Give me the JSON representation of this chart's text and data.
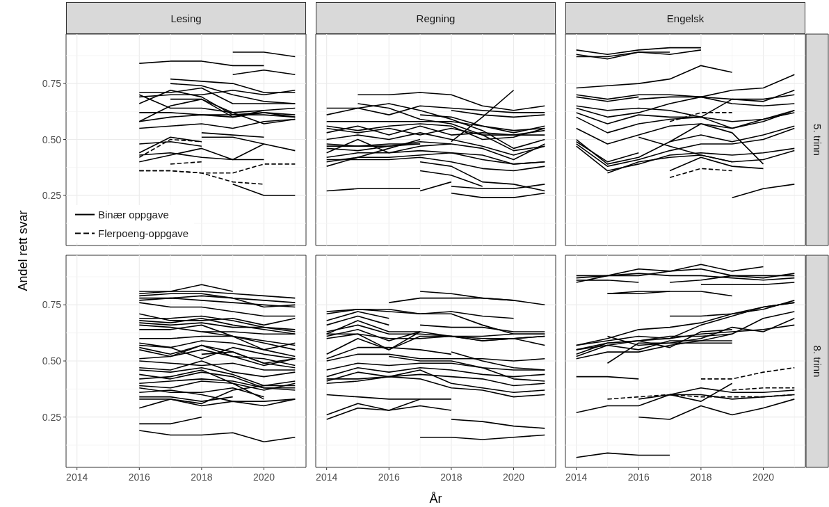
{
  "chart_data": [
    {
      "type": "line",
      "title": "Lesing",
      "ylabel": "Andel rett svar",
      "legend": "bottom left",
      "grid": true,
      "tick_labels": "y",
      "color": "#000000",
      "x": [
        2016,
        2017,
        2018,
        2019,
        2020,
        2021
      ],
      "xlim": [
        2013.65,
        2021.35
      ],
      "xticks": [
        2014,
        2016,
        2018,
        2020
      ],
      "ylim": [
        0.026,
        0.971
      ],
      "yticks": [
        0.25,
        {
          "value": 0.5,
          "label": "0.50"
        },
        0.75
      ],
      "series": [
        {
          "name": "Binær oppgave",
          "values": [
            0.84,
            0.85,
            0.85,
            0.83,
            0.83,
            null
          ]
        },
        {
          "values": [
            null,
            null,
            null,
            0.89,
            0.89,
            0.87
          ]
        },
        {
          "values": [
            null,
            null,
            null,
            0.79,
            0.81,
            0.79
          ]
        },
        {
          "values": [
            null,
            0.77,
            0.76,
            0.75,
            0.71,
            0.71
          ]
        },
        {
          "values": [
            null,
            0.75,
            0.74,
            0.7,
            0.67,
            0.66
          ]
        },
        {
          "values": [
            0.71,
            0.71,
            0.73,
            0.66,
            0.66,
            0.66
          ]
        },
        {
          "values": [
            0.66,
            0.72,
            0.69,
            0.61,
            0.62,
            0.6
          ]
        },
        {
          "values": [
            0.69,
            0.7,
            0.7,
            0.72,
            0.7,
            0.72
          ]
        },
        {
          "values": [
            0.7,
            0.64,
            0.64,
            0.62,
            0.57,
            0.59
          ]
        },
        {
          "values": [
            0.58,
            0.65,
            0.68,
            0.62,
            0.63,
            0.64
          ]
        },
        {
          "values": [
            0.62,
            0.62,
            0.61,
            0.61,
            0.61,
            0.6
          ]
        },
        {
          "values": [
            0.58,
            0.6,
            0.61,
            0.6,
            0.62,
            0.61
          ]
        },
        {
          "values": [
            0.55,
            0.56,
            0.57,
            0.55,
            0.58,
            0.59
          ]
        },
        {
          "values": [
            null,
            0.68,
            0.68,
            0.6,
            0.63,
            null
          ]
        },
        {
          "values": [
            null,
            null,
            0.53,
            0.52,
            0.51,
            null
          ]
        },
        {
          "values": [
            null,
            null,
            0.51,
            0.51,
            0.48,
            0.45
          ]
        },
        {
          "values": [
            0.48,
            0.49,
            0.47,
            null,
            null,
            null
          ]
        },
        {
          "values": [
            0.44,
            0.51,
            0.49,
            null,
            null,
            null
          ]
        },
        {
          "name": "Flerpoeng-oppgave",
          "line_style": "dashed",
          "values": [
            0.42,
            0.5,
            0.49,
            null,
            null,
            null
          ]
        },
        {
          "values": [
            0.43,
            0.44,
            0.42,
            0.41,
            0.41,
            null
          ]
        },
        {
          "values": [
            0.4,
            0.43,
            0.46,
            0.41,
            0.48,
            null
          ]
        },
        {
          "line_style": "dashed",
          "values": [
            null,
            0.39,
            0.4,
            null,
            null,
            null
          ]
        },
        {
          "line_style": "dashed",
          "values": [
            0.36,
            0.36,
            0.35,
            0.35,
            0.39,
            0.39
          ]
        },
        {
          "line_style": "dashed",
          "values": [
            0.36,
            0.36,
            0.35,
            0.31,
            0.3,
            null
          ]
        },
        {
          "values": [
            null,
            null,
            null,
            0.3,
            0.25,
            0.25
          ]
        }
      ]
    },
    {
      "type": "line",
      "title": "Regning",
      "grid": true,
      "tick_labels": false,
      "color": "#000000",
      "x": [
        2014,
        2015,
        2016,
        2017,
        2018,
        2019,
        2020,
        2021
      ],
      "xlim": [
        2013.65,
        2021.35
      ],
      "xticks": [
        2014,
        2016,
        2018,
        2020
      ],
      "ylim": [
        0.026,
        0.971
      ],
      "yticks": [
        0.25,
        0.5,
        0.75
      ],
      "series": [
        {
          "values": [
            null,
            0.7,
            0.7,
            0.71,
            0.7,
            0.65,
            0.63,
            0.65
          ]
        },
        {
          "values": [
            0.64,
            0.64,
            0.61,
            0.65,
            0.64,
            0.63,
            0.62,
            0.62
          ]
        },
        {
          "values": [
            0.61,
            0.64,
            0.66,
            0.63,
            0.59,
            0.54,
            0.46,
            0.5
          ]
        },
        {
          "values": [
            null,
            0.66,
            0.64,
            0.59,
            0.57,
            0.52,
            0.45,
            0.47
          ]
        },
        {
          "values": [
            null,
            null,
            null,
            0.61,
            0.6,
            0.56,
            0.53,
            0.56
          ]
        },
        {
          "values": [
            null,
            null,
            null,
            null,
            0.63,
            0.61,
            0.6,
            0.61
          ]
        },
        {
          "values": [
            null,
            null,
            null,
            null,
            0.49,
            0.6,
            0.72,
            null
          ]
        },
        {
          "values": [
            0.58,
            0.58,
            0.58,
            0.58,
            0.58,
            0.56,
            0.54,
            0.55
          ]
        },
        {
          "values": [
            0.56,
            0.54,
            0.56,
            0.57,
            0.56,
            0.5,
            0.51,
            0.55
          ]
        },
        {
          "values": [
            0.55,
            0.53,
            0.55,
            0.52,
            0.55,
            0.52,
            0.52,
            0.54
          ]
        },
        {
          "values": [
            0.53,
            0.56,
            0.52,
            0.56,
            0.52,
            0.53,
            0.52,
            0.52
          ]
        },
        {
          "values": [
            0.5,
            0.52,
            0.5,
            0.53,
            0.5,
            0.47,
            0.43,
            0.47
          ]
        },
        {
          "values": [
            0.48,
            0.47,
            0.47,
            0.49,
            0.48,
            0.46,
            0.41,
            0.48
          ]
        },
        {
          "values": [
            0.47,
            0.47,
            0.48,
            0.48,
            null,
            null,
            null,
            null
          ]
        },
        {
          "values": [
            0.46,
            0.45,
            0.47,
            0.48,
            null,
            null,
            null,
            null
          ]
        },
        {
          "values": [
            0.44,
            0.5,
            0.44,
            0.45,
            0.44,
            0.41,
            0.39,
            0.4
          ]
        },
        {
          "values": [
            0.42,
            0.44,
            0.44,
            0.47,
            0.48,
            null,
            null,
            null
          ]
        },
        {
          "values": [
            0.4,
            0.42,
            0.42,
            0.43,
            0.44,
            0.43,
            0.39,
            0.4
          ]
        },
        {
          "values": [
            0.38,
            0.42,
            0.46,
            0.5,
            null,
            null,
            null,
            null
          ]
        },
        {
          "values": [
            0.41,
            0.41,
            0.41,
            0.42,
            0.4,
            0.37,
            0.36,
            0.38
          ]
        },
        {
          "values": [
            null,
            null,
            null,
            0.36,
            0.34,
            0.29,
            null,
            null
          ]
        },
        {
          "values": [
            null,
            null,
            null,
            0.4,
            0.38,
            0.31,
            0.3,
            0.27
          ]
        },
        {
          "values": [
            0.27,
            0.28,
            0.28,
            0.28,
            null,
            null,
            null,
            null
          ]
        },
        {
          "values": [
            null,
            null,
            null,
            0.27,
            0.31,
            null,
            null,
            null
          ]
        },
        {
          "values": [
            null,
            null,
            null,
            null,
            0.29,
            0.28,
            0.28,
            0.3
          ]
        },
        {
          "values": [
            null,
            null,
            null,
            null,
            0.26,
            0.24,
            0.24,
            0.26
          ]
        }
      ]
    },
    {
      "type": "line",
      "title": "Engelsk",
      "annotations": [
        "5. trinn"
      ],
      "grid": true,
      "tick_labels": false,
      "color": "#000000",
      "x": [
        2014,
        2015,
        2016,
        2017,
        2018,
        2019,
        2020,
        2021
      ],
      "xlim": [
        2013.65,
        2021.35
      ],
      "xticks": [
        2014,
        2016,
        2018,
        2020
      ],
      "ylim": [
        0.026,
        0.971
      ],
      "yticks": [
        0.25,
        0.5,
        0.75
      ],
      "series": [
        {
          "values": [
            0.9,
            0.88,
            0.9,
            0.91,
            0.91,
            null,
            null,
            null
          ]
        },
        {
          "values": [
            0.88,
            0.86,
            0.89,
            0.88,
            0.9,
            null,
            null,
            null
          ]
        },
        {
          "values": [
            0.87,
            0.87,
            0.89,
            0.89,
            null,
            null,
            null,
            null
          ]
        },
        {
          "values": [
            0.73,
            0.74,
            0.75,
            0.77,
            0.83,
            0.8,
            null,
            null
          ]
        },
        {
          "values": [
            0.7,
            0.68,
            0.7,
            0.7,
            0.69,
            0.68,
            0.67,
            0.72
          ]
        },
        {
          "values": [
            0.69,
            0.67,
            0.69,
            null,
            null,
            null,
            null,
            null
          ]
        },
        {
          "values": [
            null,
            null,
            0.68,
            0.69,
            0.69,
            0.72,
            0.73,
            0.79
          ]
        },
        {
          "values": [
            0.65,
            0.63,
            0.64,
            0.63,
            0.6,
            0.68,
            0.68,
            0.7
          ]
        },
        {
          "values": [
            0.64,
            0.6,
            0.62,
            0.66,
            0.69,
            0.66,
            0.65,
            0.66
          ]
        },
        {
          "values": [
            0.62,
            0.57,
            0.61,
            0.6,
            0.6,
            0.58,
            0.59,
            0.63
          ]
        },
        {
          "values": [
            0.6,
            0.53,
            0.57,
            0.59,
            0.6,
            0.55,
            0.58,
            0.63
          ]
        },
        {
          "values": [
            0.55,
            0.48,
            0.52,
            0.56,
            0.57,
            0.55,
            0.59,
            0.62
          ]
        },
        {
          "values": [
            0.5,
            0.39,
            0.42,
            0.49,
            0.52,
            0.49,
            0.52,
            0.56
          ]
        },
        {
          "values": [
            0.49,
            0.4,
            0.44,
            null,
            null,
            null,
            null,
            null
          ]
        },
        {
          "values": [
            0.48,
            0.38,
            0.41,
            0.45,
            0.48,
            0.48,
            0.5,
            0.55
          ]
        },
        {
          "values": [
            0.47,
            0.36,
            0.39,
            0.43,
            0.44,
            0.43,
            0.44,
            0.46
          ]
        },
        {
          "values": [
            null,
            0.35,
            0.4,
            0.42,
            0.43,
            0.4,
            0.41,
            0.45
          ]
        },
        {
          "values": [
            null,
            null,
            0.51,
            0.47,
            0.43,
            0.4,
            null,
            null
          ]
        },
        {
          "values": [
            null,
            null,
            null,
            0.36,
            0.42,
            0.38,
            0.37,
            null
          ]
        },
        {
          "line_style": "dashed",
          "values": [
            null,
            null,
            null,
            0.33,
            0.37,
            0.36,
            null,
            null
          ]
        },
        {
          "line_style": "dashed",
          "values": [
            null,
            null,
            null,
            0.58,
            0.62,
            0.62,
            null,
            null
          ]
        },
        {
          "values": [
            null,
            null,
            null,
            null,
            null,
            0.24,
            0.28,
            0.3
          ]
        },
        {
          "values": [
            null,
            null,
            null,
            0.49,
            0.57,
            0.53,
            0.39,
            null
          ]
        }
      ]
    },
    {
      "type": "line",
      "grid": true,
      "color": "#000000",
      "x": [
        2016,
        2017,
        2018,
        2019,
        2020,
        2021
      ],
      "xlim": [
        2013.65,
        2021.35
      ],
      "xticks": [
        2014,
        2016,
        2018,
        2020
      ],
      "ylim": [
        0.026,
        0.971
      ],
      "yticks": [
        0.25,
        {
          "value": 0.5,
          "label": "0.50"
        },
        0.75
      ],
      "series": [
        {
          "values": [
            0.8,
            0.81,
            0.84,
            0.81,
            null,
            null
          ]
        },
        {
          "values": [
            0.81,
            0.81,
            0.81,
            0.8,
            0.79,
            0.78
          ]
        },
        {
          "values": [
            0.79,
            0.8,
            0.8,
            0.78,
            0.77,
            0.76
          ]
        },
        {
          "values": [
            0.78,
            0.78,
            0.79,
            0.78,
            0.74,
            0.75
          ]
        },
        {
          "values": [
            0.77,
            0.78,
            0.77,
            0.76,
            0.75,
            0.74
          ]
        },
        {
          "values": [
            0.76,
            0.74,
            0.74,
            0.72,
            0.7,
            0.7
          ]
        },
        {
          "values": [
            0.71,
            0.68,
            0.68,
            0.69,
            0.66,
            0.69
          ]
        },
        {
          "values": [
            0.69,
            0.69,
            0.7,
            0.68,
            0.65,
            0.64
          ]
        },
        {
          "values": [
            0.68,
            0.67,
            0.69,
            0.66,
            0.64,
            0.62
          ]
        },
        {
          "values": [
            0.67,
            0.66,
            0.67,
            0.65,
            0.65,
            0.63
          ]
        },
        {
          "values": [
            0.66,
            0.65,
            0.63,
            0.61,
            0.55,
            0.58
          ]
        },
        {
          "values": [
            0.64,
            0.64,
            0.66,
            0.61,
            0.58,
            0.55
          ]
        },
        {
          "values": [
            null,
            null,
            0.63,
            0.63,
            0.62,
            0.62
          ]
        },
        {
          "values": [
            0.6,
            0.6,
            0.61,
            0.61,
            0.59,
            0.57
          ]
        },
        {
          "values": [
            0.58,
            0.56,
            0.59,
            0.58,
            0.55,
            0.52
          ]
        },
        {
          "values": [
            0.57,
            0.56,
            0.51,
            0.56,
            0.53,
            0.51
          ]
        },
        {
          "values": [
            0.56,
            0.53,
            0.57,
            0.54,
            0.49,
            0.47
          ]
        },
        {
          "values": [
            0.55,
            0.52,
            0.57,
            0.52,
            0.51,
            0.48
          ]
        },
        {
          "values": [
            0.51,
            0.52,
            0.55,
            0.52,
            0.48,
            0.51
          ]
        },
        {
          "values": [
            null,
            null,
            0.53,
            0.54,
            0.49,
            0.51
          ]
        },
        {
          "values": [
            0.5,
            0.49,
            0.48,
            0.49,
            0.46,
            0.46
          ]
        },
        {
          "values": [
            0.47,
            0.46,
            0.5,
            0.45,
            0.43,
            0.45
          ]
        },
        {
          "values": [
            0.46,
            0.45,
            0.47,
            0.44,
            0.39,
            0.39
          ]
        },
        {
          "values": [
            0.44,
            0.42,
            0.45,
            0.43,
            0.38,
            0.38
          ]
        },
        {
          "values": [
            0.42,
            0.43,
            0.46,
            0.4,
            0.37,
            0.4
          ]
        },
        {
          "values": [
            0.4,
            0.41,
            0.42,
            0.41,
            0.38,
            0.37
          ]
        },
        {
          "values": [
            0.39,
            0.38,
            0.41,
            0.4,
            0.33,
            null
          ]
        },
        {
          "values": [
            0.38,
            0.36,
            0.36,
            0.38,
            0.34,
            null
          ]
        },
        {
          "values": [
            0.36,
            0.37,
            0.35,
            0.32,
            0.32,
            0.33
          ]
        },
        {
          "values": [
            0.34,
            0.34,
            0.32,
            0.34,
            null,
            null
          ]
        },
        {
          "values": [
            0.33,
            0.33,
            0.3,
            0.32,
            0.3,
            0.33
          ]
        },
        {
          "values": [
            0.29,
            0.33,
            0.31,
            0.37,
            0.39,
            0.41
          ]
        },
        {
          "values": [
            0.22,
            0.22,
            0.25,
            null,
            null,
            null
          ]
        },
        {
          "values": [
            0.19,
            0.17,
            0.17,
            0.18,
            0.14,
            0.16
          ]
        }
      ]
    },
    {
      "type": "line",
      "xlabel": "År",
      "grid": true,
      "tick_labels": "x",
      "color": "#000000",
      "x": [
        2014,
        2015,
        2016,
        2017,
        2018,
        2019,
        2020,
        2021
      ],
      "xlim": [
        2013.65,
        2021.35
      ],
      "xticks": [
        2014,
        2016,
        2018,
        2020
      ],
      "ylim": [
        0.026,
        0.971
      ],
      "yticks": [
        0.25,
        0.5,
        0.75
      ],
      "series": [
        {
          "values": [
            null,
            null,
            null,
            0.81,
            0.8,
            0.78,
            0.77,
            null
          ]
        },
        {
          "values": [
            null,
            null,
            0.76,
            0.78,
            0.78,
            0.78,
            0.77,
            0.75
          ]
        },
        {
          "values": [
            0.72,
            0.73,
            0.73,
            0.71,
            0.72,
            0.7,
            0.69,
            null
          ]
        },
        {
          "values": [
            0.71,
            0.73,
            0.72,
            0.71,
            0.71,
            0.66,
            0.62,
            0.62
          ]
        },
        {
          "values": [
            0.68,
            0.72,
            0.69,
            null,
            null,
            null,
            null,
            null
          ]
        },
        {
          "values": [
            0.66,
            0.7,
            0.66,
            null,
            null,
            null,
            null,
            null
          ]
        },
        {
          "values": [
            null,
            null,
            null,
            0.66,
            0.65,
            0.65,
            0.63,
            0.63
          ]
        },
        {
          "values": [
            0.62,
            0.68,
            0.63,
            0.63,
            null,
            null,
            null,
            null
          ]
        },
        {
          "values": [
            0.63,
            0.66,
            0.62,
            0.62,
            0.61,
            0.59,
            0.6,
            0.57
          ]
        },
        {
          "values": [
            0.61,
            0.64,
            0.59,
            0.63,
            0.61,
            0.61,
            0.62,
            0.62
          ]
        },
        {
          "values": [
            0.6,
            0.62,
            0.6,
            0.6,
            0.61,
            0.59,
            0.6,
            0.61
          ]
        },
        {
          "values": [
            0.62,
            0.62,
            0.55,
            0.63,
            null,
            null,
            null,
            null
          ]
        },
        {
          "values": [
            0.53,
            0.6,
            0.55,
            0.61,
            0.61,
            0.6,
            0.6,
            0.61
          ]
        },
        {
          "values": [
            0.51,
            0.56,
            0.56,
            0.55,
            0.53,
            null,
            null,
            null
          ]
        },
        {
          "values": [
            0.5,
            0.53,
            0.53,
            0.51,
            0.51,
            0.51,
            0.5,
            0.51
          ]
        },
        {
          "values": [
            null,
            null,
            null,
            null,
            0.54,
            0.5,
            0.47,
            0.46
          ]
        },
        {
          "values": [
            null,
            null,
            0.52,
            0.5,
            0.5,
            0.47,
            0.42,
            0.41
          ]
        },
        {
          "values": [
            0.46,
            0.49,
            0.48,
            0.49,
            0.49,
            0.47,
            0.46,
            0.46
          ]
        },
        {
          "values": [
            0.43,
            0.47,
            0.45,
            0.47,
            0.46,
            0.44,
            0.43,
            0.44
          ]
        },
        {
          "values": [
            0.41,
            0.45,
            0.43,
            0.46,
            0.4,
            0.38,
            0.36,
            0.37
          ]
        },
        {
          "values": [
            0.42,
            0.42,
            0.43,
            0.44,
            0.43,
            0.42,
            0.39,
            0.4
          ]
        },
        {
          "values": [
            0.4,
            0.41,
            0.43,
            0.42,
            0.38,
            0.37,
            0.34,
            0.35
          ]
        },
        {
          "values": [
            0.35,
            0.34,
            0.33,
            0.33,
            0.33,
            null,
            null,
            null
          ]
        },
        {
          "values": [
            0.26,
            0.31,
            0.28,
            0.33,
            null,
            null,
            null,
            null
          ]
        },
        {
          "values": [
            0.24,
            0.29,
            0.28,
            0.3,
            0.28,
            null,
            null,
            null
          ]
        },
        {
          "values": [
            null,
            null,
            null,
            null,
            0.24,
            0.23,
            0.21,
            0.2
          ]
        },
        {
          "values": [
            null,
            null,
            null,
            0.16,
            0.16,
            0.15,
            0.16,
            0.17
          ]
        }
      ]
    },
    {
      "type": "line",
      "annotations": [
        "8. trinn"
      ],
      "grid": true,
      "tick_labels": "x",
      "color": "#000000",
      "x": [
        2014,
        2015,
        2016,
        2017,
        2018,
        2019,
        2020,
        2021
      ],
      "xlim": [
        2013.65,
        2021.35
      ],
      "xticks": [
        2014,
        2016,
        2018,
        2020
      ],
      "ylim": [
        0.026,
        0.971
      ],
      "yticks": [
        0.25,
        0.5,
        0.75
      ],
      "series": [
        {
          "values": [
            0.87,
            0.88,
            0.91,
            0.9,
            0.93,
            0.9,
            0.92,
            null
          ]
        },
        {
          "values": [
            0.85,
            0.88,
            0.88,
            0.9,
            0.91,
            0.88,
            0.88,
            0.88
          ]
        },
        {
          "values": [
            0.88,
            0.88,
            0.89,
            0.88,
            0.88,
            0.87,
            0.86,
            0.87
          ]
        },
        {
          "values": [
            0.86,
            0.86,
            0.85,
            null,
            null,
            null,
            null,
            null
          ]
        },
        {
          "values": [
            null,
            null,
            null,
            0.85,
            0.86,
            0.88,
            0.87,
            0.89
          ]
        },
        {
          "values": [
            null,
            null,
            null,
            null,
            0.84,
            0.84,
            0.84,
            0.85
          ]
        },
        {
          "values": [
            null,
            0.8,
            0.8,
            0.81,
            0.81,
            0.79,
            null,
            null
          ]
        },
        {
          "values": [
            null,
            0.8,
            0.81,
            0.81,
            null,
            null,
            null,
            null
          ]
        },
        {
          "values": [
            0.57,
            0.6,
            0.64,
            0.65,
            0.67,
            0.71,
            0.73,
            0.77
          ]
        },
        {
          "values": [
            0.57,
            0.59,
            0.61,
            0.6,
            0.66,
            0.7,
            0.74,
            0.76
          ]
        },
        {
          "values": [
            null,
            null,
            null,
            0.7,
            0.7,
            0.71,
            0.74,
            0.76
          ]
        },
        {
          "values": [
            null,
            0.61,
            0.57,
            0.58,
            0.6,
            0.65,
            0.63,
            0.69
          ]
        },
        {
          "values": [
            0.53,
            0.58,
            0.59,
            0.56,
            0.63,
            0.64,
            null,
            null
          ]
        },
        {
          "values": [
            0.55,
            0.58,
            0.59,
            0.61,
            0.61,
            0.62,
            null,
            null
          ]
        },
        {
          "values": [
            0.55,
            0.57,
            0.59,
            0.6,
            0.62,
            0.63,
            0.64,
            0.66
          ]
        },
        {
          "values": [
            0.52,
            0.57,
            0.55,
            0.59,
            0.59,
            0.62,
            0.69,
            0.72
          ]
        },
        {
          "values": [
            0.51,
            0.54,
            0.54,
            0.57,
            0.59,
            0.59,
            null,
            null
          ]
        },
        {
          "values": [
            null,
            0.49,
            0.58,
            0.58,
            0.58,
            0.58,
            null,
            null
          ]
        },
        {
          "values": [
            0.43,
            0.43,
            0.42,
            null,
            null,
            null,
            null,
            null
          ]
        },
        {
          "values": [
            0.27,
            0.3,
            0.3,
            0.35,
            0.35,
            0.33,
            0.34,
            0.35
          ]
        },
        {
          "values": [
            null,
            null,
            0.33,
            0.35,
            0.38,
            0.36,
            0.36,
            0.37
          ]
        },
        {
          "values": [
            null,
            null,
            0.25,
            0.24,
            0.3,
            0.26,
            0.29,
            0.33
          ]
        },
        {
          "values": [
            0.07,
            0.09,
            0.08,
            0.08,
            null,
            null,
            null,
            null
          ]
        },
        {
          "values": [
            null,
            null,
            null,
            0.35,
            0.32,
            0.4,
            null,
            null
          ]
        },
        {
          "line_style": "dashed",
          "values": [
            null,
            0.33,
            0.34,
            0.35,
            0.34,
            0.34,
            0.34,
            0.35
          ]
        },
        {
          "line_style": "dashed",
          "values": [
            null,
            null,
            null,
            null,
            null,
            0.37,
            0.38,
            0.38
          ]
        },
        {
          "line_style": "dashed",
          "values": [
            null,
            null,
            null,
            null,
            0.42,
            0.42,
            0.45,
            0.47
          ]
        }
      ]
    }
  ]
}
